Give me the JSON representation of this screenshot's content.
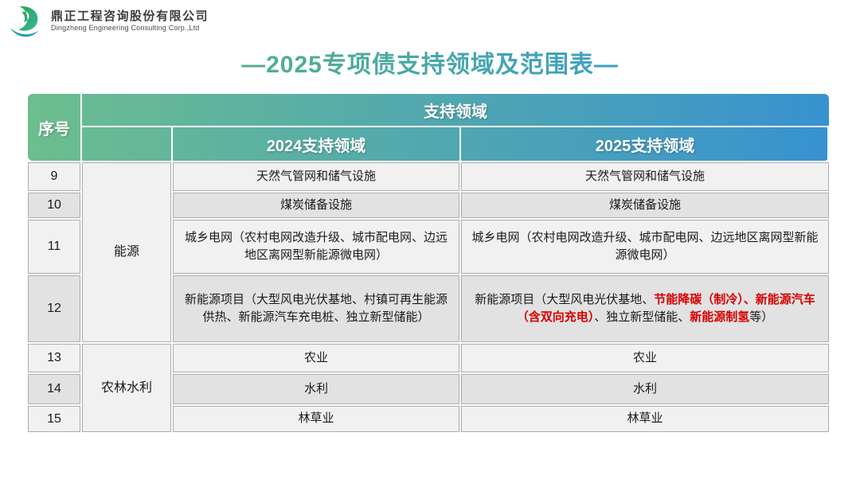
{
  "brand": {
    "company_cn": "鼎正工程咨询股份有限公司",
    "company_en": "Dingzheng Engineering Consulting Corp.,Ltd"
  },
  "title": "—2025专项债支持领域及范围表—",
  "colors": {
    "header_gradient_start": "#6CBE8E",
    "header_gradient_end": "#3892CF",
    "title_gradient_start": "#55B57B",
    "title_gradient_end": "#3C9AD4",
    "row_light": "#F1F1F1",
    "row_dark": "#E2E2E2",
    "cell_border": "#ABABAB",
    "highlight_red": "#D70000"
  },
  "table": {
    "header": {
      "no": "序号",
      "support": "支持领域",
      "y2024": "2024支持领域",
      "y2025": "2025支持领域"
    },
    "groups": [
      {
        "category": "能源",
        "rows": [
          {
            "no": "9",
            "c2024": [
              {
                "text": "天然气管网和储气设施"
              }
            ],
            "c2025": [
              {
                "text": "天然气管网和储气设施"
              }
            ]
          },
          {
            "no": "10",
            "c2024": [
              {
                "text": "煤炭储备设施"
              }
            ],
            "c2025": [
              {
                "text": "煤炭储备设施"
              }
            ]
          },
          {
            "no": "11",
            "c2024": [
              {
                "text": "城乡电网（农村电网改造升级、城市配电网、边远地区离网型新能源微电网）"
              }
            ],
            "c2025": [
              {
                "text": "城乡电网（农村电网改造升级、城市配电网、边远地区离网型新能源微电网）"
              }
            ]
          },
          {
            "no": "12",
            "c2024": [
              {
                "text": "新能源项目（大型风电光伏基地、村镇可再生能源供热、新能源汽车充电桩、独立新型储能）"
              }
            ],
            "c2025": [
              {
                "text": "新能源项目（大型风电光伏基地、"
              },
              {
                "text": "节能降碳（制冷）、新能源汽车（含双向充电）",
                "em": true
              },
              {
                "text": "、独立新型储能、"
              },
              {
                "text": "新能源制氢",
                "em": true
              },
              {
                "text": "等）"
              }
            ]
          }
        ]
      },
      {
        "category": "农林水利",
        "rows": [
          {
            "no": "13",
            "c2024": [
              {
                "text": "农业"
              }
            ],
            "c2025": [
              {
                "text": "农业"
              }
            ]
          },
          {
            "no": "14",
            "c2024": [
              {
                "text": "水利"
              }
            ],
            "c2025": [
              {
                "text": "水利"
              }
            ]
          },
          {
            "no": "15",
            "c2024": [
              {
                "text": "林草业"
              }
            ],
            "c2025": [
              {
                "text": "林草业"
              }
            ]
          }
        ]
      }
    ]
  }
}
